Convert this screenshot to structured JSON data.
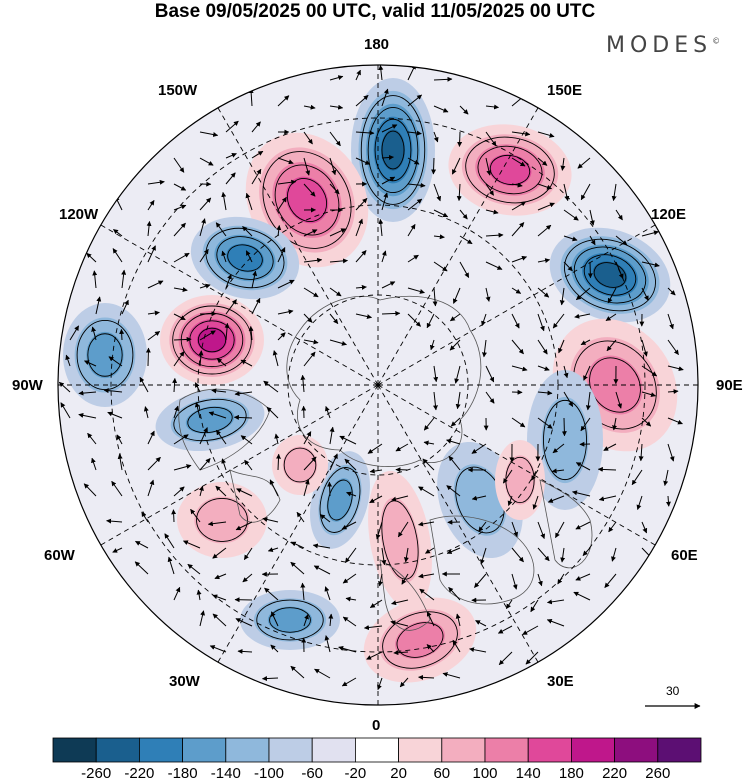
{
  "title": "Base 09/05/2025 00 UTC, valid 11/05/2025 00 UTC",
  "brand": "MODES",
  "brand_mark": "©",
  "longitude_labels": {
    "lon_180": "180",
    "lon_150W": "150W",
    "lon_150E": "150E",
    "lon_120W": "120W",
    "lon_120E": "120E",
    "lon_90W": "90W",
    "lon_90E": "90E",
    "lon_60W": "60W",
    "lon_60E": "60E",
    "lon_30W": "30W",
    "lon_30E": "30E",
    "lon_0": "0"
  },
  "reference_vector": {
    "value": "30",
    "icon": "arrow-right-icon"
  },
  "colorbar": {
    "ticks": [
      "-260",
      "-220",
      "-180",
      "-140",
      "-100",
      "-60",
      "-20",
      "20",
      "60",
      "100",
      "140",
      "180",
      "220",
      "260"
    ],
    "colors": [
      "#0e3a55",
      "#1a5f8e",
      "#2f7fb7",
      "#5d9dcb",
      "#8fb8dc",
      "#bdcde6",
      "#e1e1f0",
      "#ffffff",
      "#f8d4d8",
      "#f3aebf",
      "#ec7fa8",
      "#e0489a",
      "#bf178b",
      "#8d0e7e",
      "#5c0f73"
    ]
  },
  "map": {
    "background": "#dcdcdc",
    "features": [
      {
        "name": "neg-anomaly-180",
        "sign": "neg",
        "level": 5
      },
      {
        "name": "pos-anomaly-150W",
        "sign": "pos",
        "level": 4
      },
      {
        "name": "pos-anomaly-150E",
        "sign": "pos",
        "level": 4
      },
      {
        "name": "neg-anomaly-130W",
        "sign": "neg",
        "level": 4
      },
      {
        "name": "neg-anomaly-120E",
        "sign": "neg",
        "level": 5
      },
      {
        "name": "pos-anomaly-105W",
        "sign": "pos",
        "level": 5
      },
      {
        "name": "neg-anomaly-95W",
        "sign": "neg",
        "level": 3
      },
      {
        "name": "pos-anomaly-90E",
        "sign": "pos",
        "level": 3
      },
      {
        "name": "neg-anomaly-75W",
        "sign": "neg",
        "level": 3
      },
      {
        "name": "pos-anomaly-60W",
        "sign": "pos",
        "level": 2
      },
      {
        "name": "neg-anomaly-70E",
        "sign": "neg",
        "level": 2
      },
      {
        "name": "pos-anomaly-15E",
        "sign": "pos",
        "level": 2
      },
      {
        "name": "neg-anomaly-30W",
        "sign": "neg",
        "level": 3
      },
      {
        "name": "pos-anomaly-0",
        "sign": "pos",
        "level": 3
      },
      {
        "name": "neg-anomaly-40E",
        "sign": "neg",
        "level": 2
      },
      {
        "name": "pos-anomaly-50E",
        "sign": "pos",
        "level": 2
      },
      {
        "name": "neg-anomaly-45W",
        "sign": "neg",
        "level": 3
      },
      {
        "name": "pos-anomaly-75W",
        "sign": "pos",
        "level": 2
      }
    ]
  }
}
